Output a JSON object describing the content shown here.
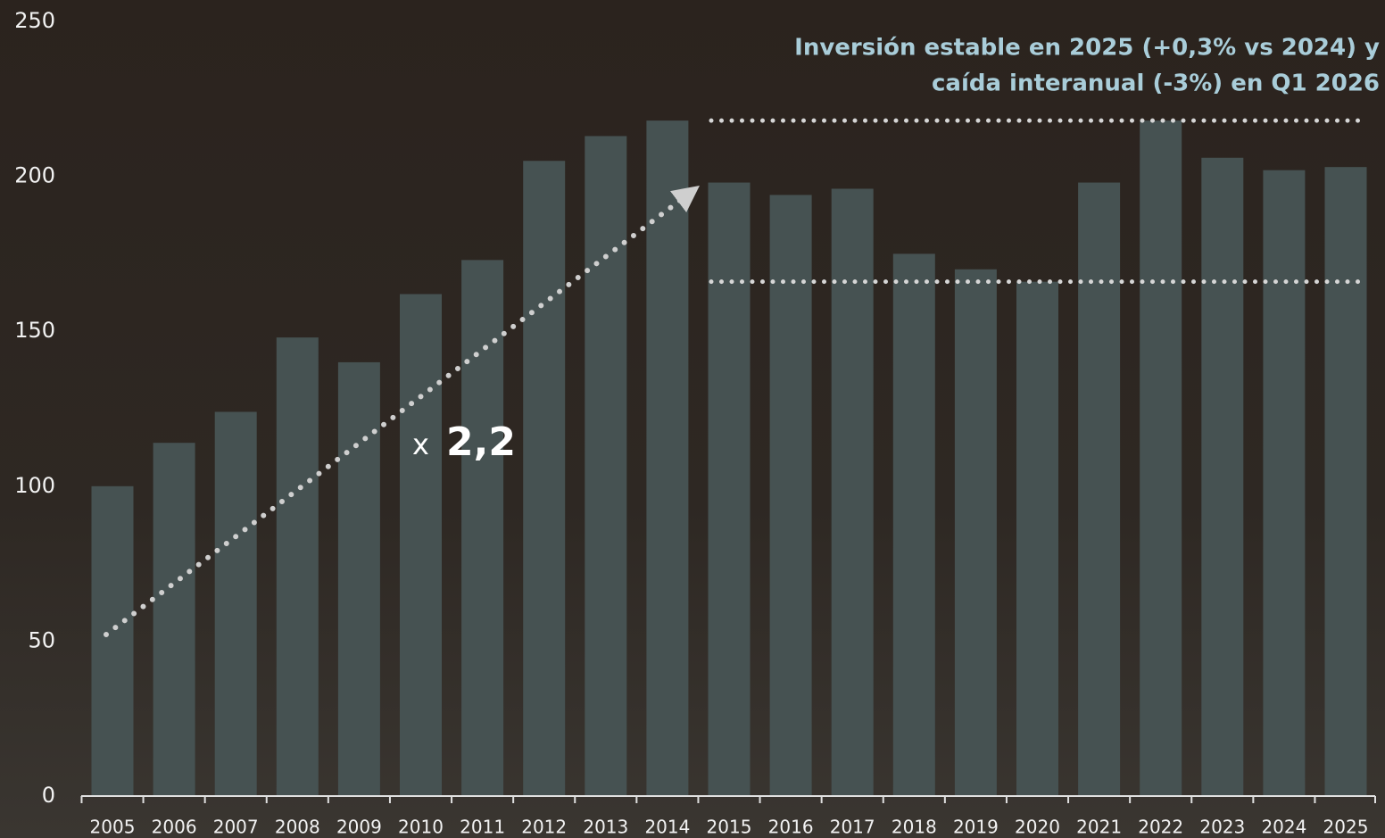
{
  "chart_data": {
    "type": "bar",
    "categories": [
      "2005",
      "2006",
      "2007",
      "2008",
      "2009",
      "2010",
      "2011",
      "2012",
      "2013",
      "2014",
      "2015",
      "2016",
      "2017",
      "2018",
      "2019",
      "2020",
      "2021",
      "2022",
      "2023",
      "2024",
      "2025"
    ],
    "values": [
      100,
      114,
      124,
      148,
      140,
      162,
      173,
      205,
      213,
      218,
      198,
      194,
      196,
      175,
      170,
      166,
      198,
      218,
      206,
      202,
      203
    ],
    "color": "#465252",
    "ylim": [
      0,
      250
    ],
    "yticks": [
      0,
      50,
      100,
      150,
      200,
      250
    ],
    "grid": false,
    "hlines": [
      218,
      166
    ],
    "annotation": [
      "Inversión estable en 2025 (+0,3% vs 2024) y",
      "caída interanual (-3%) en Q1 2026"
    ],
    "growth_label": [
      "x",
      "2,2"
    ]
  }
}
